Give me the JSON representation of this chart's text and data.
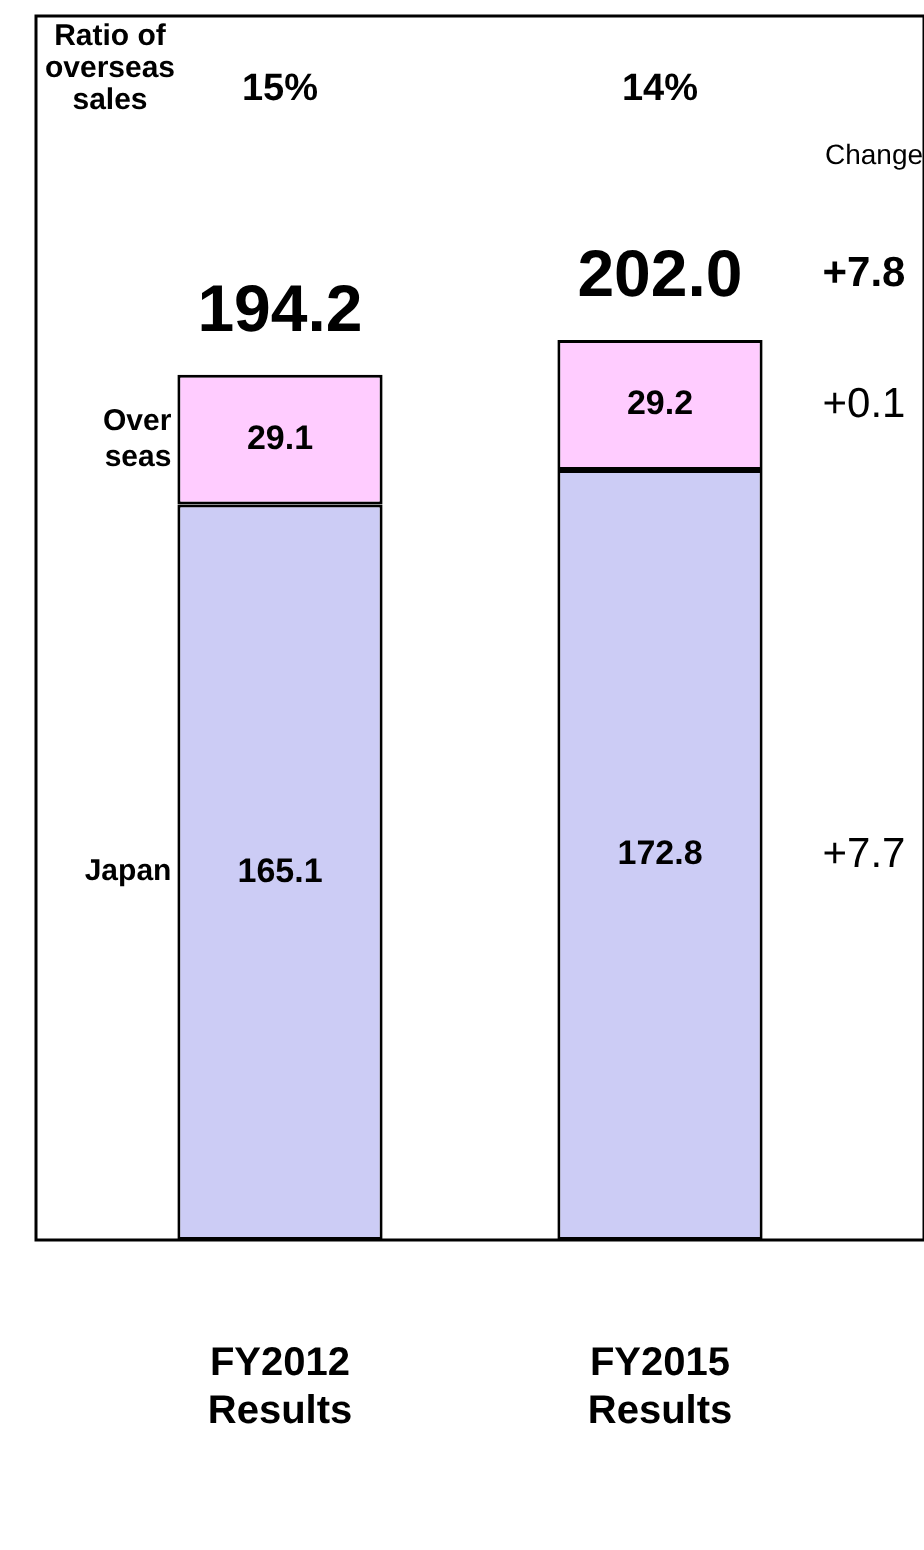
{
  "chart_data": {
    "type": "bar",
    "stacked": true,
    "categories": [
      "FY2012 Results",
      "FY2015 Results"
    ],
    "series": [
      {
        "name": "Japan",
        "color": "#ccccf5",
        "values": [
          165.1,
          172.8
        ]
      },
      {
        "name": "Over seas",
        "color": "#ffccff",
        "values": [
          29.1,
          29.2
        ]
      }
    ],
    "data_labels": true,
    "totals": [
      "194.2",
      "202.0"
    ],
    "legend": false,
    "annotations": [
      "Ratio of overseas sales",
      "15%",
      "14%",
      "Change",
      "+7.8",
      "+0.1",
      "+7.7"
    ]
  }
}
